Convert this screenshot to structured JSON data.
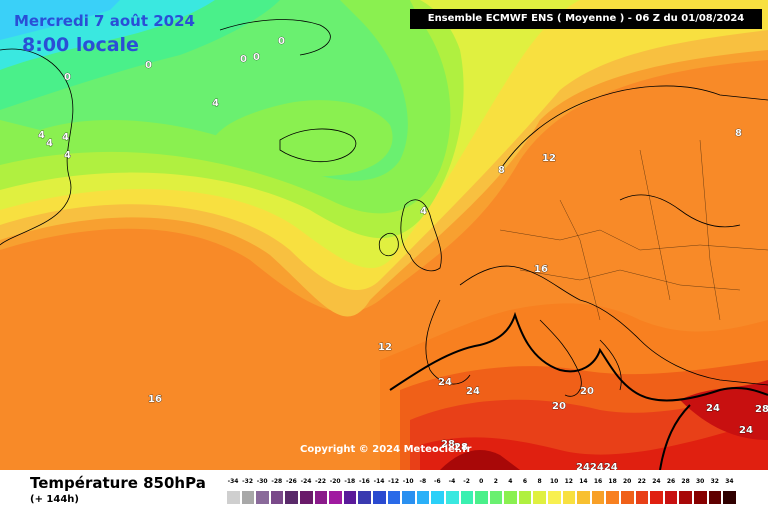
{
  "header": {
    "date": "Mercredi 7 août 2024",
    "local_time": "8:00 locale",
    "model_run": "Ensemble ECMWF ENS  ( Moyenne )  -  06 Z du 01/08/2024"
  },
  "copyright": "Copyright © 2024 Meteociel.fr",
  "footer": {
    "variable": "Température 850hPa",
    "lead_time": "(+ 144h)"
  },
  "scale": {
    "labels": [
      "-34",
      "-32",
      "-30",
      "-28",
      "-26",
      "-24",
      "-22",
      "-20",
      "-18",
      "-16",
      "-14",
      "-12",
      "-10",
      "-8",
      "-6",
      "-4",
      "-2",
      "0",
      "2",
      "4",
      "6",
      "8",
      "10",
      "12",
      "14",
      "16",
      "18",
      "20",
      "22",
      "24",
      "26",
      "28",
      "30",
      "32",
      "34"
    ],
    "colors": [
      "#cfcfcf",
      "#a8a8a8",
      "#8a6a9a",
      "#7a4a8a",
      "#5a2a6a",
      "#6a1a6a",
      "#8a1a8a",
      "#a01aa0",
      "#5a1a9a",
      "#3a3ab0",
      "#2a4ad0",
      "#2a6ae8",
      "#2a90f0",
      "#2ab0f8",
      "#2ad0f8",
      "#3ae8e0",
      "#3af0b0",
      "#4af08a",
      "#6af070",
      "#8af050",
      "#b0f040",
      "#e0f040",
      "#f8f050",
      "#f8e040",
      "#f8c030",
      "#f8a028",
      "#f88020",
      "#f06018",
      "#e84018",
      "#e02010",
      "#c81010",
      "#a80808",
      "#880000",
      "#600000",
      "#300000"
    ]
  },
  "map": {
    "isotherm_labels": [
      {
        "text": "0"
      },
      {
        "text": "0"
      },
      {
        "text": "0"
      },
      {
        "text": "0"
      },
      {
        "text": "0"
      },
      {
        "text": "4"
      },
      {
        "text": "4"
      },
      {
        "text": "4"
      },
      {
        "text": "4"
      },
      {
        "text": "4"
      },
      {
        "text": "4"
      },
      {
        "text": "8"
      },
      {
        "text": "8"
      },
      {
        "text": "12"
      },
      {
        "text": "12"
      },
      {
        "text": "16"
      },
      {
        "text": "16"
      },
      {
        "text": "20"
      },
      {
        "text": "20"
      },
      {
        "text": "24"
      },
      {
        "text": "24"
      },
      {
        "text": "24"
      },
      {
        "text": "24"
      },
      {
        "text": "28"
      },
      {
        "text": "28"
      },
      {
        "text": "28"
      },
      {
        "text": "242424"
      }
    ]
  }
}
